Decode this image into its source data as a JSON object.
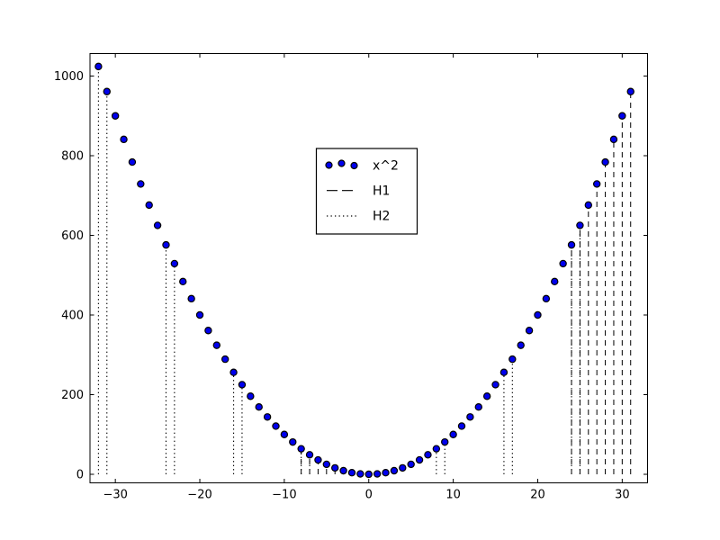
{
  "chart_data": {
    "type": "scatter",
    "title": "",
    "xlabel": "",
    "ylabel": "",
    "background": "#ffffff",
    "grid": false,
    "xlim": [
      -33,
      33
    ],
    "ylim": [
      -21.5,
      1056.5
    ],
    "xticks": {
      "values": [
        -30,
        -20,
        -10,
        0,
        10,
        20,
        30
      ],
      "labels": [
        "−30",
        "−20",
        "−10",
        "0",
        "10",
        "20",
        "30"
      ]
    },
    "yticks": {
      "values": [
        0,
        200,
        400,
        600,
        800,
        1000
      ],
      "labels": [
        "0",
        "200",
        "400",
        "600",
        "800",
        "1000"
      ]
    },
    "legend": {
      "location": "upper center",
      "frame": true
    },
    "series": [
      {
        "name": "x^2",
        "type": "scatter",
        "marker": "circle",
        "color": "#0000EE",
        "edge_color": "#000000",
        "x": [
          -32,
          -31,
          -30,
          -29,
          -28,
          -27,
          -26,
          -25,
          -24,
          -23,
          -22,
          -21,
          -20,
          -19,
          -18,
          -17,
          -16,
          -15,
          -14,
          -13,
          -12,
          -11,
          -10,
          -9,
          -8,
          -7,
          -6,
          -5,
          -4,
          -3,
          -2,
          -1,
          0,
          1,
          2,
          3,
          4,
          5,
          6,
          7,
          8,
          9,
          10,
          11,
          12,
          13,
          14,
          15,
          16,
          17,
          18,
          19,
          20,
          21,
          22,
          23,
          24,
          25,
          26,
          27,
          28,
          29,
          30,
          31
        ],
        "y": [
          1024,
          961,
          900,
          841,
          784,
          729,
          676,
          625,
          576,
          529,
          484,
          441,
          400,
          361,
          324,
          289,
          256,
          225,
          196,
          169,
          144,
          121,
          100,
          81,
          64,
          49,
          36,
          25,
          16,
          9,
          4,
          1,
          0,
          1,
          4,
          9,
          16,
          25,
          36,
          49,
          64,
          81,
          100,
          121,
          144,
          169,
          196,
          225,
          256,
          289,
          324,
          361,
          400,
          441,
          484,
          529,
          576,
          625,
          676,
          729,
          784,
          841,
          900,
          961
        ]
      },
      {
        "name": "H1",
        "type": "vlines",
        "linestyle": "dashed",
        "color": "#000000",
        "ymin": 0,
        "x": [
          -8,
          -7,
          -6,
          -5,
          -4,
          -3,
          -2,
          -1,
          24,
          25,
          26,
          27,
          28,
          29,
          30,
          31
        ],
        "y": [
          64,
          49,
          36,
          25,
          16,
          9,
          4,
          1,
          576,
          625,
          676,
          729,
          784,
          841,
          900,
          961
        ]
      },
      {
        "name": "H2",
        "type": "vlines",
        "linestyle": "dotted",
        "color": "#000000",
        "ymin": 0,
        "x": [
          -32,
          -31,
          -24,
          -23,
          -16,
          -15,
          -8,
          -7,
          0,
          1,
          8,
          9,
          16,
          17,
          24,
          25
        ],
        "y": [
          1024,
          961,
          576,
          529,
          256,
          225,
          64,
          49,
          0,
          1,
          64,
          81,
          256,
          289,
          576,
          625
        ]
      }
    ]
  }
}
